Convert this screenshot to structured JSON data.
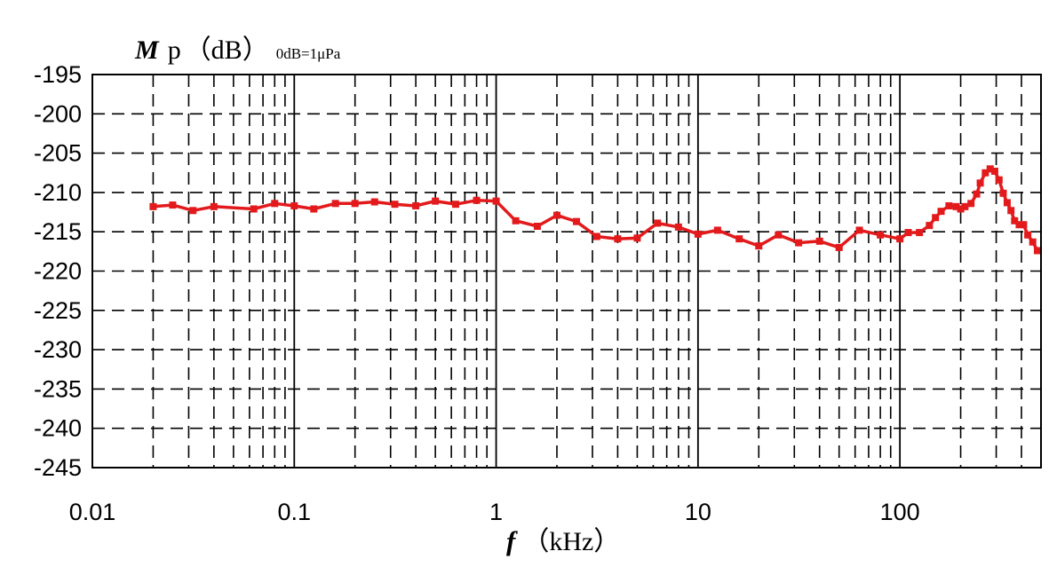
{
  "chart_data": {
    "type": "line",
    "x_scale": "log",
    "xlim": [
      0.01,
      500
    ],
    "ylim": [
      -245,
      -195
    ],
    "grid": true,
    "ylabel": {
      "symbol": "M",
      "subscript": "p",
      "unit": "（dB）",
      "reference": "0dB=1μPa"
    },
    "xlabel": {
      "symbol": "f",
      "unit": "（kHz）"
    },
    "xticks": [
      0.01,
      0.1,
      1,
      10,
      100
    ],
    "xtick_labels": [
      "0.01",
      "0.1",
      "1",
      "10",
      "100"
    ],
    "yticks": [
      -195,
      -200,
      -205,
      -210,
      -215,
      -220,
      -225,
      -230,
      -235,
      -240,
      -245
    ],
    "ytick_labels": [
      "-195",
      "-200",
      "-205",
      "-210",
      "-215",
      "-220",
      "-225",
      "-230",
      "-235",
      "-240",
      "-245"
    ],
    "series": [
      {
        "color": "#e31a1c",
        "marker": "square",
        "points": [
          [
            0.02,
            -211.8
          ],
          [
            0.025,
            -211.6
          ],
          [
            0.0315,
            -212.3
          ],
          [
            0.04,
            -211.8
          ],
          [
            0.063,
            -212.1
          ],
          [
            0.08,
            -211.4
          ],
          [
            0.1,
            -211.7
          ],
          [
            0.125,
            -212.1
          ],
          [
            0.16,
            -211.4
          ],
          [
            0.2,
            -211.4
          ],
          [
            0.25,
            -211.2
          ],
          [
            0.315,
            -211.5
          ],
          [
            0.4,
            -211.7
          ],
          [
            0.5,
            -211.1
          ],
          [
            0.63,
            -211.5
          ],
          [
            0.8,
            -211.0
          ],
          [
            1.0,
            -211.1
          ],
          [
            1.25,
            -213.6
          ],
          [
            1.6,
            -214.3
          ],
          [
            2.0,
            -212.9
          ],
          [
            2.5,
            -213.7
          ],
          [
            3.15,
            -215.6
          ],
          [
            4.0,
            -215.9
          ],
          [
            5.0,
            -215.8
          ],
          [
            6.3,
            -213.9
          ],
          [
            8.0,
            -214.4
          ],
          [
            10.0,
            -215.3
          ],
          [
            12.5,
            -214.8
          ],
          [
            16.0,
            -215.9
          ],
          [
            20.0,
            -216.8
          ],
          [
            25.0,
            -215.4
          ],
          [
            31.5,
            -216.4
          ],
          [
            40.0,
            -216.2
          ],
          [
            50.0,
            -217.0
          ],
          [
            63.0,
            -214.8
          ],
          [
            80.0,
            -215.4
          ],
          [
            100.0,
            -215.9
          ],
          [
            110.0,
            -215.1
          ],
          [
            125.0,
            -215.1
          ],
          [
            140.0,
            -214.2
          ],
          [
            150.0,
            -213.2
          ],
          [
            160.0,
            -212.4
          ],
          [
            175.0,
            -211.7
          ],
          [
            190.0,
            -211.8
          ],
          [
            200.0,
            -212.1
          ],
          [
            210.0,
            -211.8
          ],
          [
            225.0,
            -211.4
          ],
          [
            240.0,
            -210.2
          ],
          [
            250.0,
            -208.8
          ],
          [
            265.0,
            -207.5
          ],
          [
            280.0,
            -207.0
          ],
          [
            295.0,
            -207.3
          ],
          [
            310.0,
            -208.4
          ],
          [
            325.0,
            -210.1
          ],
          [
            340.0,
            -211.3
          ],
          [
            355.0,
            -212.3
          ],
          [
            370.0,
            -213.6
          ],
          [
            390.0,
            -214.1
          ],
          [
            410.0,
            -214.1
          ],
          [
            430.0,
            -215.4
          ],
          [
            455.0,
            -216.3
          ],
          [
            480.0,
            -217.4
          ]
        ]
      }
    ]
  }
}
